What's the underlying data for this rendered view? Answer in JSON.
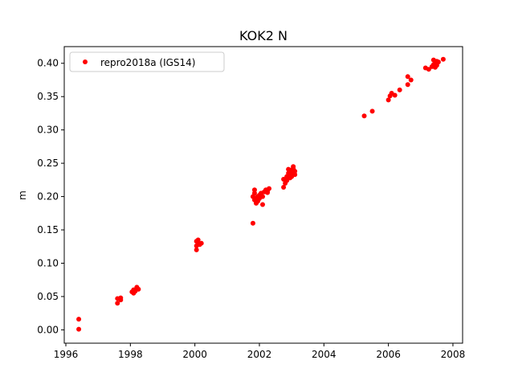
{
  "chart_data": {
    "type": "scatter",
    "title": "KOK2 N",
    "xlabel": "",
    "ylabel": "m",
    "xlim": [
      1995.95,
      2008.3
    ],
    "ylim": [
      -0.02,
      0.425
    ],
    "grid": false,
    "legend_position": "top-left",
    "x_ticks": [
      1996,
      1998,
      2000,
      2002,
      2004,
      2006,
      2008
    ],
    "x_tick_labels": [
      "1996",
      "1998",
      "2000",
      "2002",
      "2004",
      "2006",
      "2008"
    ],
    "y_ticks": [
      0.0,
      0.05,
      0.1,
      0.15,
      0.2,
      0.25,
      0.3,
      0.35,
      0.4
    ],
    "y_tick_labels": [
      "0.00",
      "0.05",
      "0.10",
      "0.15",
      "0.20",
      "0.25",
      "0.30",
      "0.35",
      "0.40"
    ],
    "series": [
      {
        "name": "repro2018a (IGS14)",
        "color": "#ff0000",
        "marker": "circle",
        "x": [
          1996.4,
          1996.4,
          1997.6,
          1997.6,
          1997.7,
          1997.7,
          1998.05,
          1998.1,
          1998.15,
          1998.2,
          1998.25,
          1998.1,
          1998.2,
          2000.05,
          2000.05,
          2000.1,
          2000.1,
          2000.2,
          2000.05,
          2000.15,
          2001.8,
          2001.85,
          2001.85,
          2001.9,
          2001.95,
          2002.0,
          2002.05,
          2002.1,
          2001.9,
          2002.0,
          2002.15,
          2002.2,
          2002.25,
          2002.3,
          2002.1,
          2001.85,
          2001.95,
          2002.05,
          2002.25,
          2001.8,
          2001.9,
          2002.0,
          2002.75,
          2002.8,
          2002.85,
          2002.9,
          2002.95,
          2003.0,
          2003.05,
          2003.1,
          2002.8,
          2002.9,
          2003.0,
          2003.05,
          2002.85,
          2002.95,
          2003.1,
          2002.75,
          2002.9,
          2003.0,
          2005.25,
          2005.5,
          2006.0,
          2006.05,
          2006.1,
          2006.2,
          2006.35,
          2006.6,
          2006.6,
          2006.7,
          2007.15,
          2007.25,
          2007.35,
          2007.4,
          2007.45,
          2007.5,
          2007.55,
          2007.4,
          2007.5,
          2007.45,
          2007.7
        ],
        "y": [
          0.016,
          0.001,
          0.04,
          0.047,
          0.045,
          0.048,
          0.057,
          0.06,
          0.058,
          0.063,
          0.061,
          0.055,
          0.064,
          0.12,
          0.126,
          0.13,
          0.135,
          0.13,
          0.133,
          0.128,
          0.16,
          0.205,
          0.195,
          0.198,
          0.2,
          0.202,
          0.205,
          0.2,
          0.19,
          0.197,
          0.207,
          0.21,
          0.208,
          0.212,
          0.188,
          0.21,
          0.193,
          0.203,
          0.206,
          0.2,
          0.197,
          0.199,
          0.214,
          0.225,
          0.23,
          0.235,
          0.228,
          0.24,
          0.245,
          0.238,
          0.22,
          0.232,
          0.236,
          0.242,
          0.224,
          0.229,
          0.233,
          0.226,
          0.241,
          0.23,
          0.321,
          0.328,
          0.345,
          0.351,
          0.355,
          0.352,
          0.36,
          0.368,
          0.38,
          0.375,
          0.393,
          0.391,
          0.395,
          0.398,
          0.4,
          0.403,
          0.402,
          0.405,
          0.397,
          0.394,
          0.406
        ]
      }
    ]
  }
}
